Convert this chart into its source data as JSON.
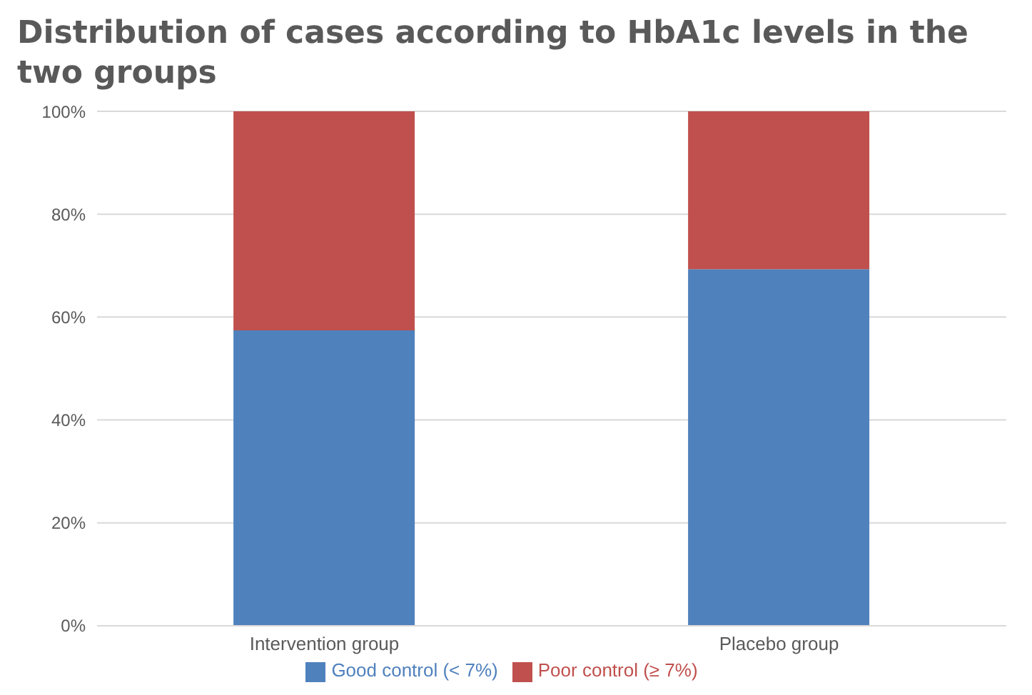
{
  "chart_data": {
    "type": "bar",
    "title": "Distribution of cases according to HbA1c levels in the two groups",
    "categories": [
      "Intervention group",
      "Placebo group"
    ],
    "series": [
      {
        "name": "Good control (< 7%)",
        "color": "#4f81bd",
        "values": [
          57.4,
          69.3
        ]
      },
      {
        "name": "Poor control (≥ 7%)",
        "color": "#c0504d",
        "values": [
          42.6,
          30.7
        ]
      }
    ],
    "stacked": true,
    "ylim": [
      0,
      100
    ],
    "yticks": [
      {
        "value": 0,
        "label": "0%"
      },
      {
        "value": 20,
        "label": "20%"
      },
      {
        "value": 40,
        "label": "40%"
      },
      {
        "value": 60,
        "label": "60%"
      },
      {
        "value": 80,
        "label": "80%"
      },
      {
        "value": 100,
        "label": "100%"
      }
    ],
    "grid": "y",
    "legend": "bottom"
  }
}
